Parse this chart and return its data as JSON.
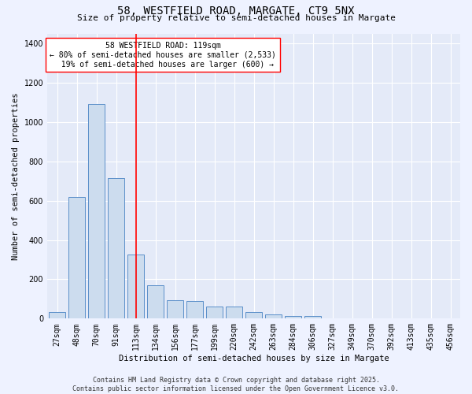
{
  "title_line1": "58, WESTFIELD ROAD, MARGATE, CT9 5NX",
  "title_line2": "Size of property relative to semi-detached houses in Margate",
  "xlabel": "Distribution of semi-detached houses by size in Margate",
  "ylabel": "Number of semi-detached properties",
  "categories": [
    "27sqm",
    "48sqm",
    "70sqm",
    "91sqm",
    "113sqm",
    "134sqm",
    "156sqm",
    "177sqm",
    "199sqm",
    "220sqm",
    "242sqm",
    "263sqm",
    "284sqm",
    "306sqm",
    "327sqm",
    "349sqm",
    "370sqm",
    "392sqm",
    "413sqm",
    "435sqm",
    "456sqm"
  ],
  "values": [
    35,
    620,
    1090,
    715,
    325,
    170,
    95,
    90,
    60,
    60,
    35,
    20,
    15,
    15,
    0,
    0,
    0,
    0,
    0,
    0,
    0
  ],
  "bar_color": "#ccdcee",
  "bar_edge_color": "#5b8fc9",
  "redline_index": 4,
  "annotation_text": "58 WESTFIELD ROAD: 119sqm\n← 80% of semi-detached houses are smaller (2,533)\n  19% of semi-detached houses are larger (600) →",
  "footer_line1": "Contains HM Land Registry data © Crown copyright and database right 2025.",
  "footer_line2": "Contains public sector information licensed under the Open Government Licence v3.0.",
  "ylim": [
    0,
    1450
  ],
  "background_color": "#eef2ff",
  "plot_bg_color": "#e4eaf8",
  "grid_color": "#ffffff",
  "title_fontsize": 10,
  "subtitle_fontsize": 8,
  "footer_fontsize": 6,
  "ylabel_fontsize": 7.5,
  "xlabel_fontsize": 7.5,
  "tick_fontsize": 7
}
